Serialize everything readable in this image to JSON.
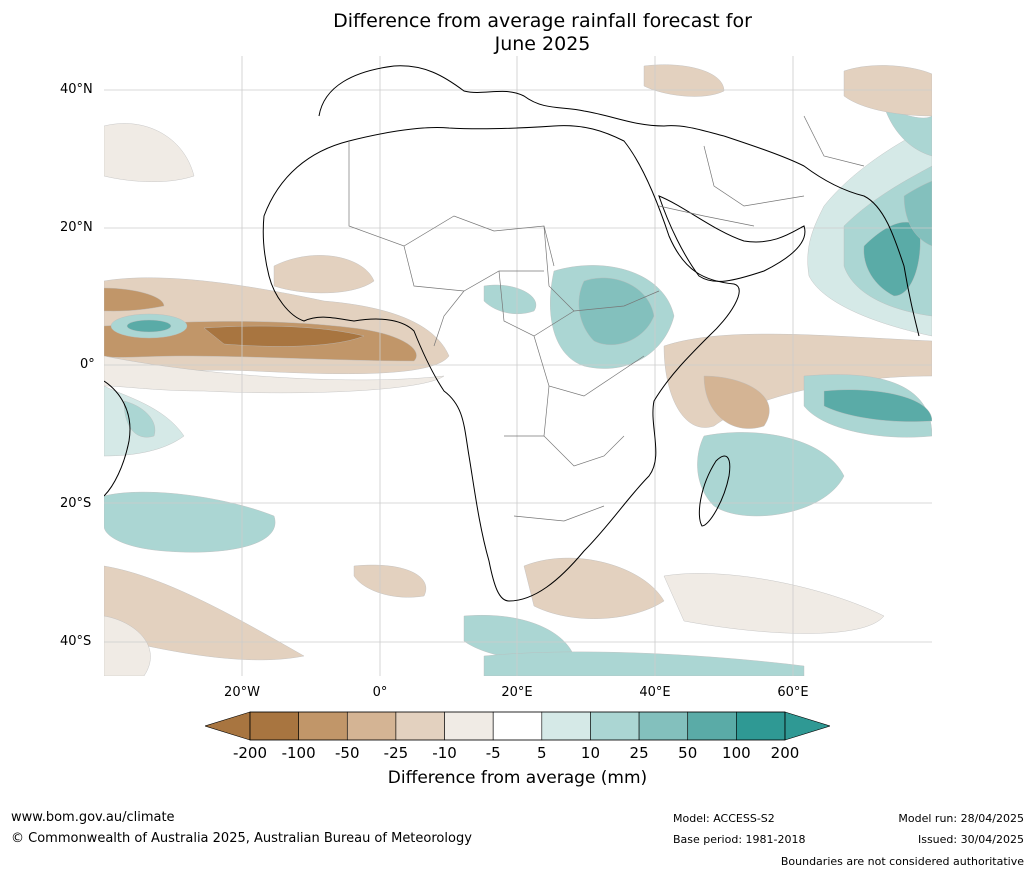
{
  "title_line1": "Difference from average rainfall forecast for",
  "title_line2": "June 2025",
  "lat_labels": [
    "40°N",
    "20°N",
    "0°",
    "20°S",
    "40°S"
  ],
  "lon_labels": [
    "20°W",
    "0°",
    "20°E",
    "40°E",
    "60°E"
  ],
  "legend": {
    "ticks": [
      "-200",
      "-100",
      "-50",
      "-25",
      "-10",
      "-5",
      "5",
      "10",
      "25",
      "50",
      "100",
      "200"
    ],
    "colors": [
      "#a87540",
      "#c19669",
      "#d4b494",
      "#e3d1bf",
      "#f0ebe5",
      "#ffffff",
      "#d5e9e7",
      "#abd6d3",
      "#83c0bd",
      "#5aaba7",
      "#2f9994"
    ],
    "title": "Difference from average (mm)"
  },
  "footer": {
    "website": "www.bom.gov.au/climate",
    "copyright": "© Commonwealth of Australia 2025, Australian Bureau of Meteorology",
    "model": "Model: ACCESS-S2",
    "base_period": "Base period: 1981-2018",
    "model_run": "Model run: 28/04/2025",
    "issued": "Issued: 30/04/2025",
    "disclaimer": "Boundaries are not considered authoritative"
  }
}
